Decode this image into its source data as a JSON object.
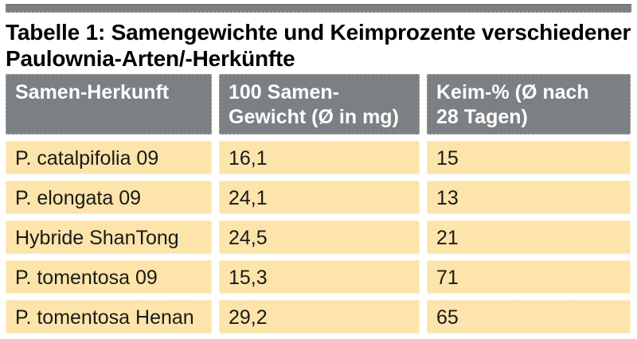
{
  "caption": {
    "line1": "Tabelle 1: Samengewichte und Keimprozente verschiedener",
    "line2": "Paulownia-Arten/-Herkünfte"
  },
  "table": {
    "headers": [
      {
        "line1": "Samen-Herkunft",
        "line2": ""
      },
      {
        "line1": "100 Samen-",
        "line2": "Gewicht (Ø in mg)"
      },
      {
        "line1": "Keim-% (Ø nach",
        "line2": "28 Tagen)"
      }
    ],
    "rows": [
      {
        "herkunft": "P. catalpifolia 09",
        "gewicht_mg": "16,1",
        "keim_prozent": "15"
      },
      {
        "herkunft": "P. elongata 09",
        "gewicht_mg": "24,1",
        "keim_prozent": "13"
      },
      {
        "herkunft": "Hybride ShanTong",
        "gewicht_mg": "24,5",
        "keim_prozent": "21"
      },
      {
        "herkunft": "P. tomentosa 09",
        "gewicht_mg": "15,3",
        "keim_prozent": "71"
      },
      {
        "herkunft": "P. tomentosa Henan",
        "gewicht_mg": "29,2",
        "keim_prozent": "65"
      }
    ]
  },
  "colors": {
    "header-bg": "#7c8083",
    "row-bg": "#fce4ab",
    "bar": "#7c8083",
    "header-text": "#ffffff",
    "body-text": "#1a1a18",
    "page-bg": "#ffffff"
  },
  "chart_data": {
    "type": "table",
    "title": "Tabelle 1: Samengewichte und Keimprozente verschiedener Paulownia-Arten/-Herkünfte",
    "columns": [
      "Samen-Herkunft",
      "100 Samen-Gewicht (Ø in mg)",
      "Keim-% (Ø nach 28 Tagen)"
    ],
    "rows": [
      [
        "P. catalpifolia 09",
        "16,1",
        "15"
      ],
      [
        "P. elongata 09",
        "24,1",
        "13"
      ],
      [
        "Hybride ShanTong",
        "24,5",
        "21"
      ],
      [
        "P. tomentosa 09",
        "15,3",
        "71"
      ],
      [
        "P. tomentosa Henan",
        "29,2",
        "65"
      ]
    ],
    "numeric_rows": [
      {
        "herkunft": "P. catalpifolia 09",
        "gewicht_mg": 16.1,
        "keim_prozent": 15
      },
      {
        "herkunft": "P. elongata 09",
        "gewicht_mg": 24.1,
        "keim_prozent": 13
      },
      {
        "herkunft": "Hybride ShanTong",
        "gewicht_mg": 24.5,
        "keim_prozent": 21
      },
      {
        "herkunft": "P. tomentosa 09",
        "gewicht_mg": 15.3,
        "keim_prozent": 71
      },
      {
        "herkunft": "P. tomentosa Henan",
        "gewicht_mg": 29.2,
        "keim_prozent": 65
      }
    ]
  }
}
